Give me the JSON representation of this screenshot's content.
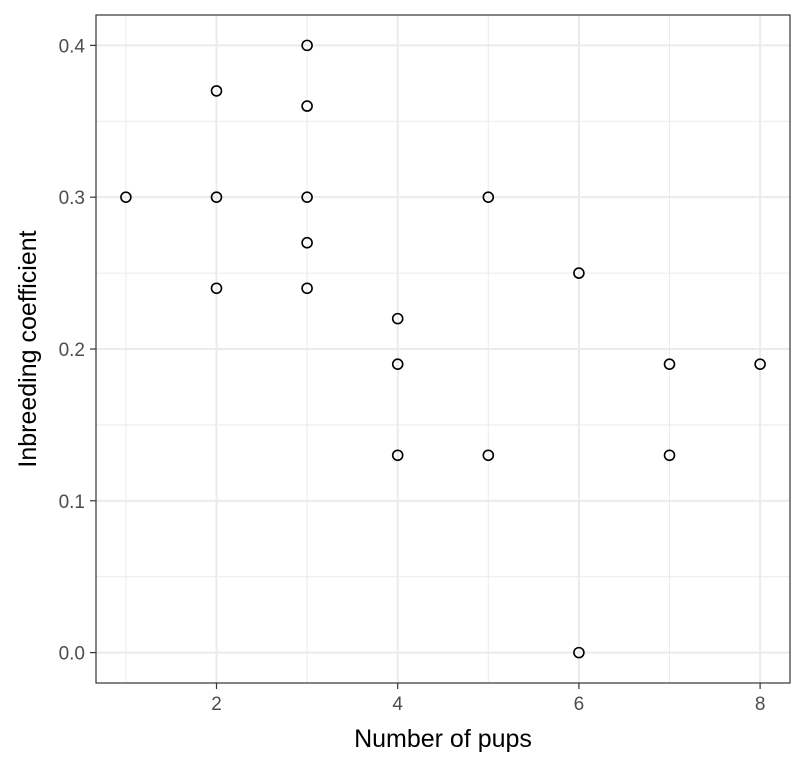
{
  "chart_data": {
    "type": "scatter",
    "title": "",
    "xlabel": "Number of pups",
    "ylabel": "Inbreeding coefficient",
    "xlim": [
      0.67,
      8.33
    ],
    "ylim": [
      -0.02,
      0.42
    ],
    "x_ticks": [
      2,
      4,
      6,
      8
    ],
    "x_tick_labels": [
      "2",
      "4",
      "6",
      "8"
    ],
    "x_minor_ticks": [
      1,
      3,
      5,
      7
    ],
    "y_ticks": [
      0.0,
      0.1,
      0.2,
      0.3,
      0.4
    ],
    "y_tick_labels": [
      "0.0",
      "0.1",
      "0.2",
      "0.3",
      "0.4"
    ],
    "y_minor_ticks": [
      0.05,
      0.15,
      0.25,
      0.35
    ],
    "grid": true,
    "theme": "bw",
    "marker": "open-circle",
    "colors": {
      "grid": "#ebebeb",
      "panel_border": "#333333",
      "point_stroke": "#000000",
      "tick_label": "#4d4d4d"
    },
    "points": [
      {
        "x": 1,
        "y": 0.3
      },
      {
        "x": 2,
        "y": 0.37
      },
      {
        "x": 2,
        "y": 0.3
      },
      {
        "x": 2,
        "y": 0.24
      },
      {
        "x": 3,
        "y": 0.4
      },
      {
        "x": 3,
        "y": 0.36
      },
      {
        "x": 3,
        "y": 0.3
      },
      {
        "x": 3,
        "y": 0.27
      },
      {
        "x": 3,
        "y": 0.24
      },
      {
        "x": 4,
        "y": 0.22
      },
      {
        "x": 4,
        "y": 0.19
      },
      {
        "x": 4,
        "y": 0.13
      },
      {
        "x": 5,
        "y": 0.3
      },
      {
        "x": 5,
        "y": 0.13
      },
      {
        "x": 6,
        "y": 0.25
      },
      {
        "x": 6,
        "y": 0.0
      },
      {
        "x": 7,
        "y": 0.19
      },
      {
        "x": 7,
        "y": 0.13
      },
      {
        "x": 8,
        "y": 0.19
      }
    ]
  }
}
